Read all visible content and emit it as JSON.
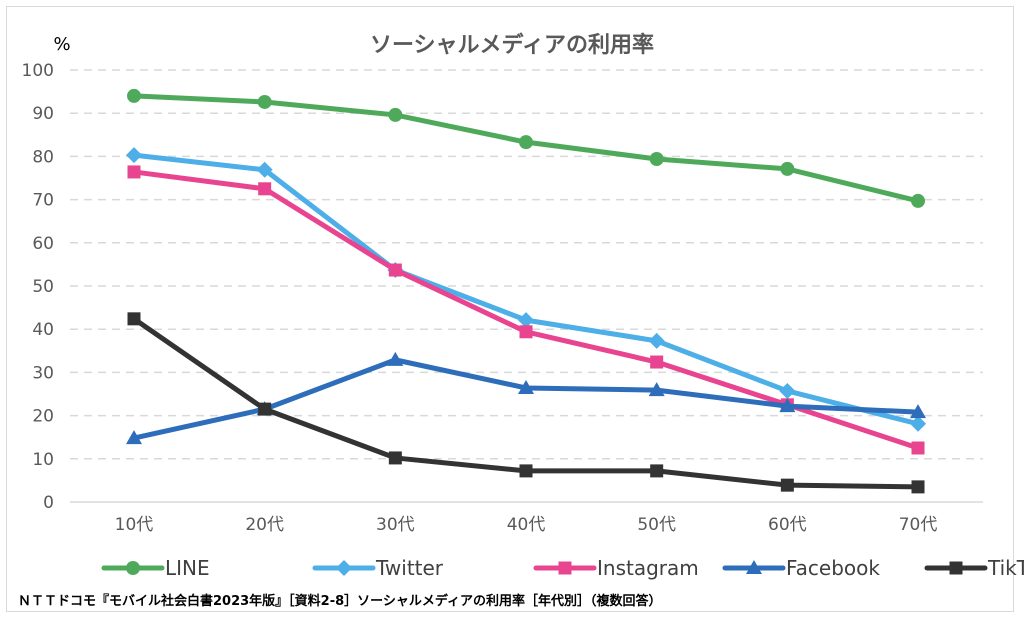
{
  "chart_data": {
    "type": "line",
    "title": "ソーシャルメディアの利用率",
    "ylabel": "%",
    "xlabel": "",
    "ylim": [
      0,
      100
    ],
    "yticks": [
      0,
      10,
      20,
      30,
      40,
      50,
      60,
      70,
      80,
      90,
      100
    ],
    "grid": true,
    "legend_position": "bottom",
    "categories": [
      "10代",
      "20代",
      "30代",
      "40代",
      "50代",
      "60代",
      "70代"
    ],
    "series": [
      {
        "name": "LINE",
        "color": "#4EAA5A",
        "marker": "circle",
        "values": [
          94.0,
          92.6,
          89.6,
          83.3,
          79.4,
          77.1,
          69.7
        ]
      },
      {
        "name": "Twitter",
        "color": "#4DAEE8",
        "marker": "diamond",
        "values": [
          80.3,
          76.9,
          53.7,
          42.1,
          37.3,
          25.7,
          18.1
        ]
      },
      {
        "name": "Instagram",
        "color": "#E8448F",
        "marker": "square",
        "values": [
          76.4,
          72.5,
          53.7,
          39.4,
          32.4,
          22.5,
          12.5
        ]
      },
      {
        "name": "Facebook",
        "color": "#2E6DBA",
        "marker": "triangle",
        "values": [
          14.8,
          21.5,
          32.9,
          26.4,
          25.9,
          22.2,
          20.8
        ]
      },
      {
        "name": "TikTok",
        "color": "#333333",
        "marker": "square",
        "values": [
          42.4,
          21.5,
          10.2,
          7.2,
          7.2,
          3.9,
          3.5
        ]
      }
    ],
    "source": "ＮＴＴドコモ『モバイル社会白書2023年版』［資料2-8］ソーシャルメディアの利用率［年代別］（複数回答）"
  }
}
